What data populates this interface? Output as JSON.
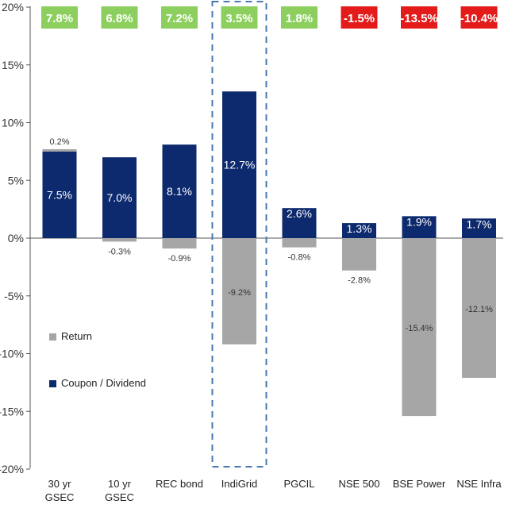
{
  "chart_data": {
    "type": "bar",
    "categories": [
      "30 yr\nGSEC",
      "10 yr\nGSEC",
      "REC bond",
      "IndiGrid",
      "PGCIL",
      "NSE 500",
      "BSE Power",
      "NSE Infra"
    ],
    "series": [
      {
        "name": "Return",
        "values": [
          0.2,
          -0.3,
          -0.9,
          -9.2,
          -0.8,
          -2.8,
          -15.4,
          -12.1
        ]
      },
      {
        "name": "Coupon / Dividend",
        "values": [
          7.5,
          7.0,
          8.1,
          12.7,
          2.6,
          1.3,
          1.9,
          1.7
        ]
      }
    ],
    "totals": [
      7.8,
      6.8,
      7.2,
      3.5,
      1.8,
      -1.5,
      -13.5,
      -10.4
    ],
    "total_labels": [
      "7.8%",
      "6.8%",
      "7.2%",
      "3.5%",
      "1.8%",
      "-1.5%",
      "-13.5%",
      "-10.4%"
    ],
    "return_labels": [
      "0.2%",
      "-0.3%",
      "-0.9%",
      "-9.2%",
      "-0.8%",
      "-2.8%",
      "-15.4%",
      "-12.1%"
    ],
    "coupon_labels": [
      "7.5%",
      "7.0%",
      "8.1%",
      "12.7%",
      "2.6%",
      "1.3%",
      "1.9%",
      "1.7%"
    ],
    "yticks": [
      20,
      15,
      10,
      5,
      0,
      -5,
      -10,
      -15,
      -20
    ],
    "ytick_labels": [
      "20%",
      "15%",
      "10%",
      "5%",
      "0%",
      "-5%",
      "-10%",
      "-15%",
      "-20%"
    ],
    "ylim": [
      -20,
      20
    ],
    "highlight_category": "IndiGrid",
    "colors": {
      "return": "#a6a6a6",
      "coupon": "#0d2a6e",
      "positive_total": "#8ccf5f",
      "negative_total": "#e31b1b",
      "highlight_border": "#4a7ab0"
    },
    "legend": {
      "position": "left-lower"
    }
  }
}
